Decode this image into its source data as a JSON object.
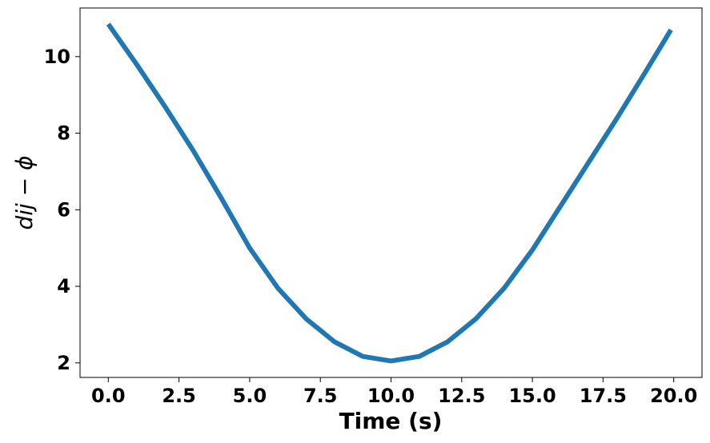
{
  "chart_data": {
    "type": "line",
    "x_label": "Time (s)",
    "y_label": "dij − ϕ",
    "x": [
      0,
      1,
      2,
      3,
      4,
      5,
      6,
      7,
      8,
      9,
      10,
      11,
      12,
      13,
      14,
      15,
      16,
      17,
      18,
      19,
      19.9
    ],
    "series": [
      {
        "name": "dij − ϕ",
        "color": "#1f77b4",
        "values": [
          10.85,
          9.8,
          8.7,
          7.55,
          6.3,
          5.0,
          3.95,
          3.15,
          2.55,
          2.17,
          2.05,
          2.17,
          2.55,
          3.15,
          3.95,
          4.95,
          6.1,
          7.25,
          8.4,
          9.6,
          10.7
        ]
      }
    ],
    "xlim": [
      -1,
      21
    ],
    "ylim": [
      1.62,
      11.27
    ],
    "xticks": [
      {
        "value": 0,
        "label": "0.0"
      },
      2.5,
      {
        "value": 5,
        "label": "5.0"
      },
      7.5,
      {
        "value": 10,
        "label": "10.0"
      },
      12.5,
      {
        "value": 15,
        "label": "15.0"
      },
      17.5,
      {
        "value": 20,
        "label": "20.0"
      }
    ],
    "yticks": [
      2,
      4,
      6,
      8,
      10
    ],
    "grid": false
  }
}
